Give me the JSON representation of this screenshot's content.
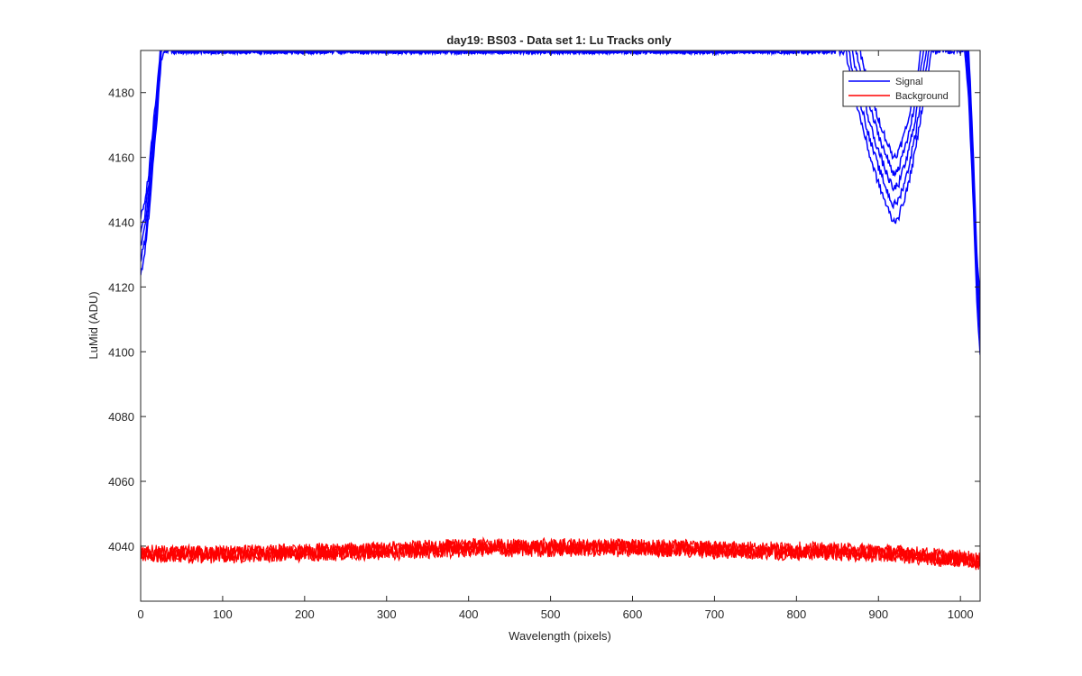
{
  "chart_data": {
    "type": "line",
    "title": "day19: BS03 - Data set 1: Lu Tracks only",
    "xlabel": "Wavelength (pixels)",
    "ylabel": "LuMid (ADU)",
    "xlim": [
      0,
      1024
    ],
    "ylim": [
      4023,
      4193
    ],
    "xticks": [
      0,
      100,
      200,
      300,
      400,
      500,
      600,
      700,
      800,
      900,
      1000
    ],
    "yticks": [
      4040,
      4060,
      4080,
      4100,
      4120,
      4140,
      4160,
      4180
    ],
    "grid": false,
    "legend_position": "top-right",
    "series": [
      {
        "name": "Signal",
        "color": "#0000ff",
        "description_points": [
          {
            "x": 0,
            "y": 4124
          },
          {
            "x": 5,
            "y": 4130
          },
          {
            "x": 10,
            "y": 4142
          },
          {
            "x": 15,
            "y": 4158
          },
          {
            "x": 20,
            "y": 4172
          },
          {
            "x": 25,
            "y": 4190
          },
          {
            "x": 28,
            "y": 4193
          },
          {
            "x": 860,
            "y": 4193
          },
          {
            "x": 870,
            "y": 4180
          },
          {
            "x": 880,
            "y": 4170
          },
          {
            "x": 890,
            "y": 4160
          },
          {
            "x": 900,
            "y": 4152
          },
          {
            "x": 910,
            "y": 4145
          },
          {
            "x": 918,
            "y": 4140
          },
          {
            "x": 925,
            "y": 4142
          },
          {
            "x": 935,
            "y": 4150
          },
          {
            "x": 945,
            "y": 4162
          },
          {
            "x": 955,
            "y": 4178
          },
          {
            "x": 965,
            "y": 4193
          },
          {
            "x": 1005,
            "y": 4193
          },
          {
            "x": 1010,
            "y": 4178
          },
          {
            "x": 1015,
            "y": 4150
          },
          {
            "x": 1020,
            "y": 4115
          },
          {
            "x": 1024,
            "y": 4100
          }
        ]
      },
      {
        "name": "Background",
        "color": "#ff0000",
        "description_points": [
          {
            "x": 0,
            "y": 4037.5
          },
          {
            "x": 100,
            "y": 4037.5
          },
          {
            "x": 200,
            "y": 4038
          },
          {
            "x": 300,
            "y": 4038.5
          },
          {
            "x": 400,
            "y": 4039.5
          },
          {
            "x": 500,
            "y": 4039.5
          },
          {
            "x": 600,
            "y": 4039.5
          },
          {
            "x": 700,
            "y": 4039
          },
          {
            "x": 800,
            "y": 4038.5
          },
          {
            "x": 900,
            "y": 4038
          },
          {
            "x": 1000,
            "y": 4036
          },
          {
            "x": 1024,
            "y": 4035.5
          }
        ]
      }
    ]
  }
}
